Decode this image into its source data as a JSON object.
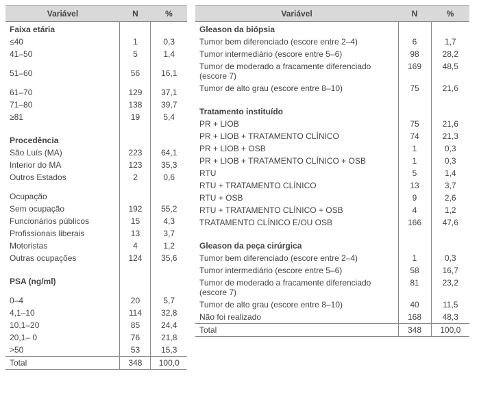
{
  "headers": {
    "variable": "Variável",
    "n": "N",
    "pct": "%"
  },
  "left": {
    "sections": [
      {
        "title": "Faixa etária",
        "rows": [
          {
            "label": "≤40",
            "n": "1",
            "pct": "0,3"
          },
          {
            "label": "41–50",
            "n": "5",
            "pct": "1,4"
          },
          {
            "label": "51–60",
            "n": "56",
            "pct": "16,1",
            "gapBefore": true
          },
          {
            "label": "61–70",
            "n": "129",
            "pct": "37,1",
            "gapBefore": true
          },
          {
            "label": "71–80",
            "n": "138",
            "pct": "39,7"
          },
          {
            "label": "≥81",
            "n": "19",
            "pct": "5,4"
          }
        ]
      },
      {
        "title": "Procedência",
        "rows": [
          {
            "label": "São Luís (MA)",
            "n": "223",
            "pct": "64,1"
          },
          {
            "label": "Interior do MA",
            "n": "123",
            "pct": "35,3"
          },
          {
            "label": "Outros Estados",
            "n": "2",
            "pct": "0,6"
          },
          {
            "label": "Ocupação",
            "n": "",
            "pct": "",
            "gapBefore": true
          },
          {
            "label": "Sem ocupação",
            "n": "192",
            "pct": "55,2"
          },
          {
            "label": "Funcionários públicos",
            "n": "15",
            "pct": "4,3"
          },
          {
            "label": "Profissionais liberais",
            "n": "13",
            "pct": "3,7"
          },
          {
            "label": "Motoristas",
            "n": "4",
            "pct": "1,2"
          },
          {
            "label": "Outras ocupações",
            "n": "124",
            "pct": "35,6"
          }
        ]
      },
      {
        "title": "PSA (ng/ml)",
        "rows": [
          {
            "label": "0–4",
            "n": "20",
            "pct": "5,7",
            "gapBefore": true
          },
          {
            "label": "4,1–10",
            "n": "114",
            "pct": "32,8"
          },
          {
            "label": "10,1–20",
            "n": "85",
            "pct": "24,4"
          },
          {
            "label": "20,1– 0",
            "n": "76",
            "pct": "21,8"
          },
          {
            "label": ">50",
            "n": "53",
            "pct": "15,3"
          }
        ]
      }
    ],
    "total": {
      "label": "Total",
      "n": "348",
      "pct": "100,0"
    }
  },
  "right": {
    "sections": [
      {
        "title": "Gleason da biópsia",
        "rows": [
          {
            "label": "Tumor bem diferenciado (escore entre 2–4)",
            "n": "6",
            "pct": "1,7"
          },
          {
            "label": "Tumor intermediário (escore entre 5–6)",
            "n": "98",
            "pct": "28,2"
          },
          {
            "label": "Tumor de moderado a fracamente diferenciado (escore 7)",
            "n": "169",
            "pct": "48,5"
          },
          {
            "label": "Tumor de alto grau (escore entre 8–10)",
            "n": "75",
            "pct": "21,6"
          }
        ]
      },
      {
        "title": "Tratamento instituído",
        "rows": [
          {
            "label": "PR + LIOB",
            "n": "75",
            "pct": "21,6"
          },
          {
            "label": "PR + LIOB + TRATAMENTO CLÍNICO",
            "n": "74",
            "pct": "21,3"
          },
          {
            "label": "PR + LIOB + OSB",
            "n": "1",
            "pct": "0,3"
          },
          {
            "label": "PR + LIOB + TRATAMENTO CLÍNICO + OSB",
            "n": "1",
            "pct": "0,3"
          },
          {
            "label": "RTU",
            "n": "5",
            "pct": "1,4"
          },
          {
            "label": "RTU + TRATAMENTO CLÍNICO",
            "n": "13",
            "pct": "3,7"
          },
          {
            "label": "RTU + OSB",
            "n": "9",
            "pct": "2,6"
          },
          {
            "label": "RTU + TRATAMENTO CLÍNICO + OSB",
            "n": "4",
            "pct": "1,2"
          },
          {
            "label": "TRATAMENTO CLÍNICO E/OU OSB",
            "n": "166",
            "pct": "47,6"
          }
        ]
      },
      {
        "title": "Gleason da peça cirúrgica",
        "rows": [
          {
            "label": "Tumor bem diferenciado (escore entre 2–4)",
            "n": "1",
            "pct": "0,3"
          },
          {
            "label": "Tumor intermediário (escore entre 5–6)",
            "n": "58",
            "pct": "16,7"
          },
          {
            "label": "Tumor de moderado a fracamente diferenciado (escore 7)",
            "n": "81",
            "pct": "23,2"
          },
          {
            "label": "Tumor de alto grau (escore entre 8–10)",
            "n": "40",
            "pct": "11,5"
          },
          {
            "label": "Não foi realizado",
            "n": "168",
            "pct": "48,3"
          }
        ]
      }
    ],
    "total": {
      "label": "Total",
      "n": "348",
      "pct": "100,0"
    }
  },
  "columnWidths": {
    "left": {
      "var": "63%",
      "n": "17%",
      "pct": "20%"
    },
    "right": {
      "var": "74%",
      "n": "12%",
      "pct": "14%"
    }
  }
}
